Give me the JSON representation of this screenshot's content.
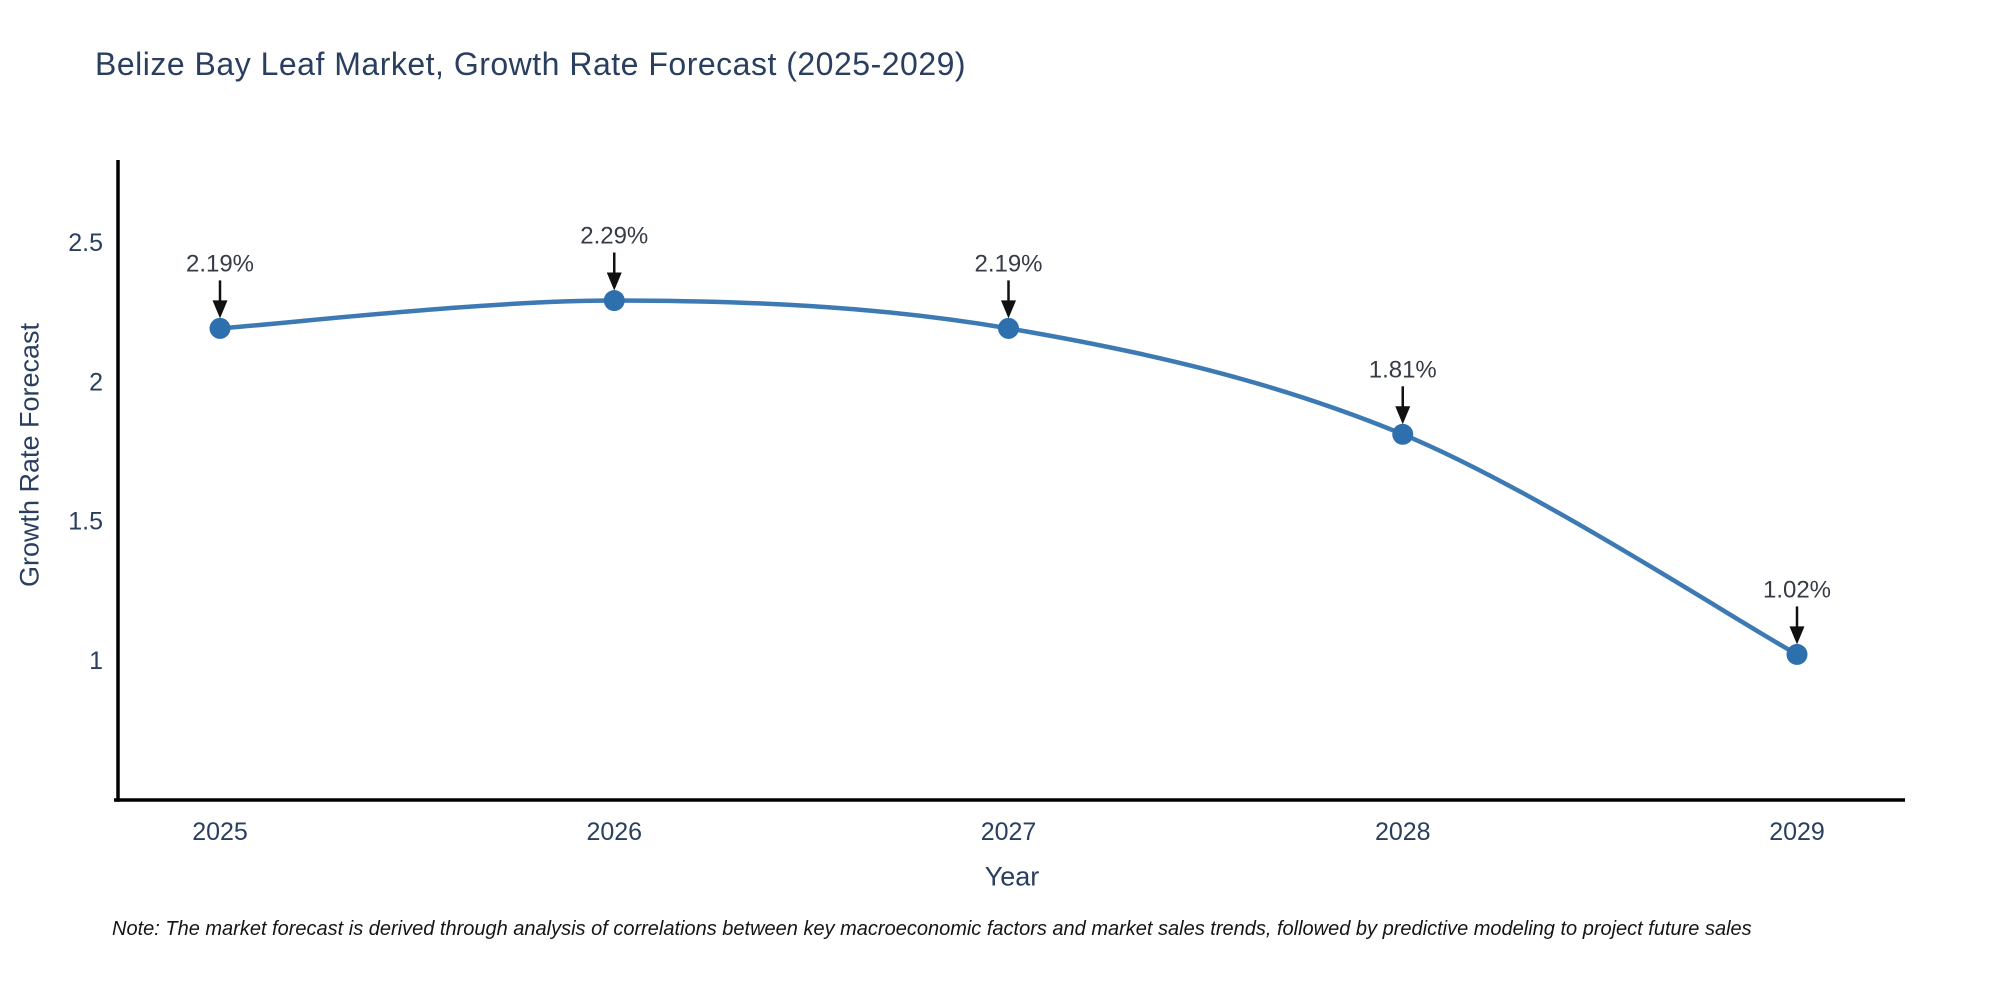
{
  "title": "Belize Bay Leaf Market, Growth Rate Forecast (2025-2029)",
  "note": "Note: The market forecast is derived through analysis of correlations between key macroeconomic factors and market sales trends, followed by predictive modeling to project future sales",
  "chart_data": {
    "type": "line",
    "title": "Belize Bay Leaf Market, Growth Rate Forecast (2025-2029)",
    "xlabel": "Year",
    "ylabel": "Growth Rate Forecast",
    "x": [
      2025,
      2026,
      2027,
      2028,
      2029
    ],
    "values": [
      2.19,
      2.29,
      2.19,
      1.81,
      1.02
    ],
    "point_labels": [
      "2.19%",
      "2.29%",
      "2.19%",
      "1.81%",
      "1.02%"
    ],
    "y_ticks": [
      1,
      1.5,
      2,
      2.5
    ],
    "y_tick_labels": [
      "1",
      "1.5",
      "2",
      "2.5"
    ],
    "ylim": [
      0.5,
      2.8
    ],
    "line_shape": "spline",
    "grid": false,
    "legend": "none",
    "colors": {
      "line": "#3d7ab4",
      "marker": "#2e6fad",
      "annotation": "#363c46",
      "arrow": "#111111",
      "spine": "#000000",
      "tick": "#2a3f5f",
      "title": "#2a3f5f",
      "note": "#151515",
      "background": "#ffffff"
    }
  }
}
